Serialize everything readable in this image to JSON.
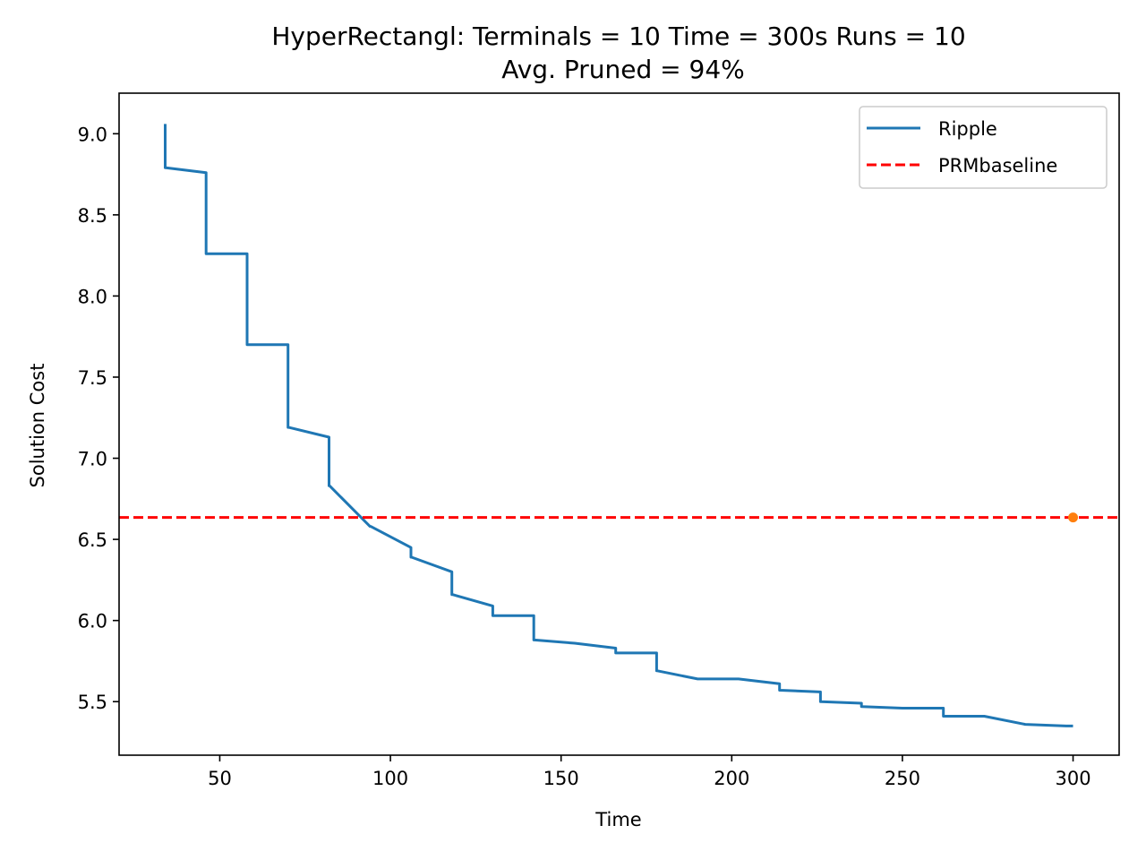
{
  "chart_data": {
    "type": "line",
    "title": "HyperRectangl:  Terminals = 10  Time = 300s  Runs = 10",
    "subtitle": "Avg. Pruned = 94%",
    "xlabel": "Time",
    "ylabel": "Solution Cost",
    "xlim": [
      20.5,
      313.5
    ],
    "ylim": [
      5.17,
      9.25
    ],
    "x_ticks": [
      50,
      100,
      150,
      200,
      250,
      300
    ],
    "x_tick_labels": [
      "50",
      "100",
      "150",
      "200",
      "250",
      "300"
    ],
    "y_ticks": [
      5.5,
      6.0,
      6.5,
      7.0,
      7.5,
      8.0,
      8.5,
      9.0
    ],
    "y_tick_labels": [
      "5.5",
      "6.0",
      "6.5",
      "7.0",
      "7.5",
      "8.0",
      "8.5",
      "9.0"
    ],
    "grid": false,
    "legend_position": "top-right",
    "series": [
      {
        "name": "Ripple",
        "style": "solid",
        "color": "#1f77b4",
        "x": [
          34,
          34,
          34.2,
          46,
          46,
          46.2,
          58,
          58,
          58.2,
          70,
          70,
          70.2,
          82,
          82,
          82.2,
          94,
          94.2,
          106,
          106,
          106.2,
          118,
          118,
          118.2,
          130,
          130,
          130.2,
          142,
          142,
          142.2,
          154,
          166,
          166,
          166.2,
          178,
          178,
          178.2,
          190,
          202,
          214,
          214,
          214.2,
          226,
          226,
          226.2,
          238,
          238,
          238.2,
          250,
          250,
          250.2,
          262,
          262,
          262.2,
          274,
          286,
          298,
          300
        ],
        "y": [
          9.06,
          8.79,
          8.79,
          8.76,
          8.26,
          8.26,
          8.26,
          7.7,
          7.7,
          7.7,
          7.19,
          7.19,
          7.13,
          6.83,
          6.83,
          6.58,
          6.58,
          6.45,
          6.39,
          6.39,
          6.3,
          6.16,
          6.16,
          6.09,
          6.03,
          6.03,
          6.03,
          5.88,
          5.88,
          5.86,
          5.83,
          5.8,
          5.8,
          5.8,
          5.69,
          5.69,
          5.64,
          5.64,
          5.61,
          5.57,
          5.57,
          5.56,
          5.5,
          5.5,
          5.49,
          5.47,
          5.47,
          5.46,
          5.46,
          5.46,
          5.46,
          5.41,
          5.41,
          5.41,
          5.36,
          5.35,
          5.35
        ]
      },
      {
        "name": "PRMbaseline",
        "style": "dashed",
        "color": "#ff0000",
        "y": 6.635
      }
    ],
    "marker": {
      "x": 300,
      "y": 6.635,
      "color": "#ff7f0e"
    }
  }
}
